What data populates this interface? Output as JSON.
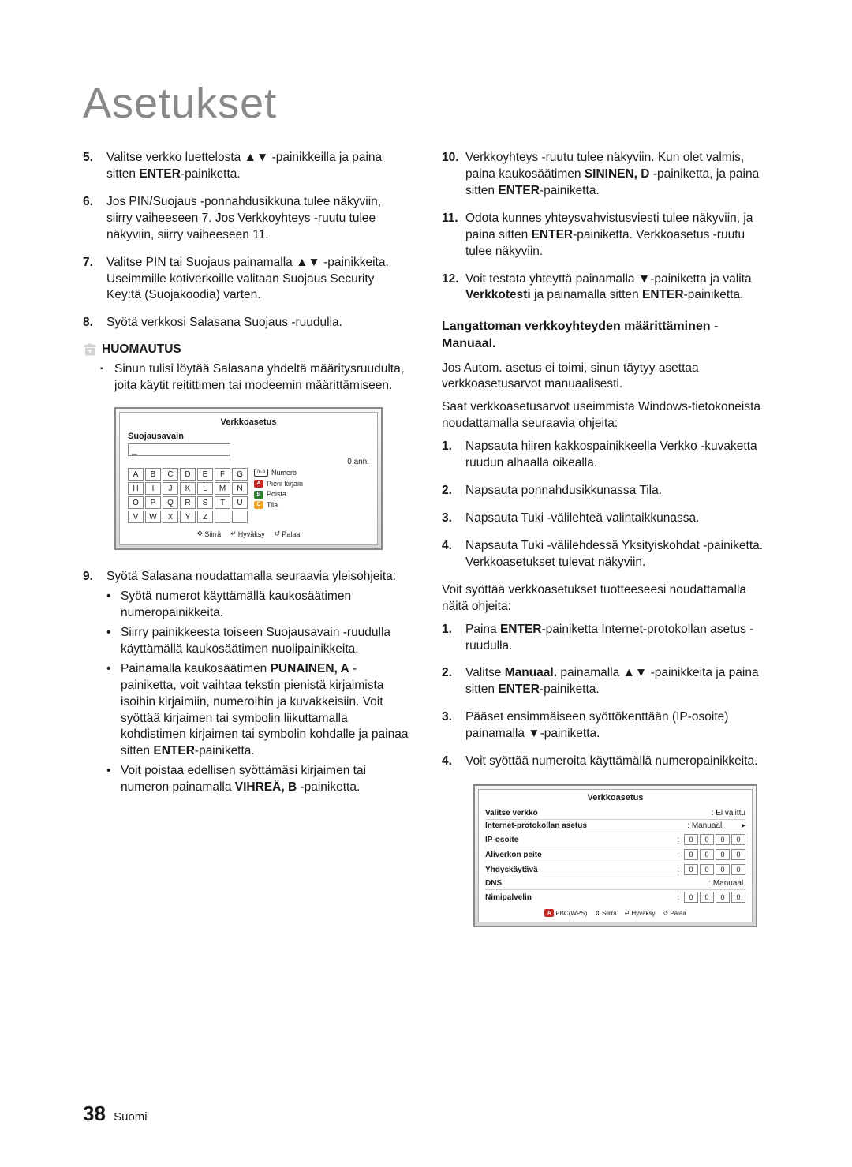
{
  "title": "Asetukset",
  "left": {
    "steps": [
      {
        "n": "5.",
        "html": "Valitse verkko luettelosta ▲▼ -painikkeilla ja paina sitten <b>ENTER</b>-painiketta."
      },
      {
        "n": "6.",
        "html": "Jos PIN/Suojaus -ponnahdusikkuna tulee näkyviin, siirry vaiheeseen 7. Jos Verkkoyhteys -ruutu tulee näkyviin, siirry vaiheeseen 11."
      },
      {
        "n": "7.",
        "html": "Valitse PIN tai Suojaus painamalla ▲▼ -painikkeita.<br>Useimmille kotiverkoille valitaan Suojaus Security Key:tä (Suojakoodia) varten."
      },
      {
        "n": "8.",
        "html": "Syötä verkkosi Salasana Suojaus -ruudulla."
      }
    ],
    "note_label": "HUOMAUTUS",
    "note_body": "Sinun tulisi löytää Salasana yhdeltä määritysruudulta, joita käytit reitittimen tai modeemin määrittämiseen.",
    "figure1": {
      "title": "Verkkoasetus",
      "field_label": "Suojausavain",
      "field_value": "_",
      "ann": "0 ann.",
      "keys": [
        "A",
        "B",
        "C",
        "D",
        "E",
        "F",
        "G",
        "H",
        "I",
        "J",
        "K",
        "L",
        "M",
        "N",
        "O",
        "P",
        "Q",
        "R",
        "S",
        "T",
        "U",
        "V",
        "W",
        "X",
        "Y",
        "Z",
        "",
        ""
      ],
      "legend": [
        {
          "chip": "num",
          "chip_text": "0~9",
          "label": "Numero"
        },
        {
          "chip": "red",
          "chip_text": "A",
          "label": "Pieni kirjain"
        },
        {
          "chip": "green",
          "chip_text": "B",
          "label": "Poista"
        },
        {
          "chip": "yellow",
          "chip_text": "C",
          "label": "Tila"
        }
      ],
      "footer": [
        {
          "sym": "✥",
          "label": "Siirrä"
        },
        {
          "sym": "↵",
          "label": "Hyväksy"
        },
        {
          "sym": "↺",
          "label": "Palaa"
        }
      ]
    },
    "step9": {
      "n": "9.",
      "intro": "Syötä Salasana noudattamalla seuraavia yleisohjeita:",
      "bullets": [
        "Syötä numerot käyttämällä kaukosäätimen numeropainikkeita.",
        "Siirry painikkeesta toiseen Suojausavain -ruudulla käyttämällä kaukosäätimen nuolipainikkeita.",
        "Painamalla kaukosäätimen <b>PUNAINEN, A</b> -painiketta, voit vaihtaa tekstin pienistä kirjaimista isoihin kirjaimiin, numeroihin ja kuvakkeisiin. Voit syöttää kirjaimen tai symbolin liikuttamalla kohdistimen kirjaimen tai symbolin kohdalle ja painaa sitten <b>ENTER</b>-painiketta.",
        "Voit poistaa edellisen syöttämäsi kirjaimen tai numeron painamalla <b>VIHREÄ, B</b> -painiketta."
      ]
    }
  },
  "right": {
    "steps": [
      {
        "n": "10.",
        "html": "Verkkoyhteys -ruutu tulee näkyviin. Kun olet valmis, paina kaukosäätimen <b>SININEN, D</b> -painiketta, ja paina sitten <b>ENTER</b>-painiketta."
      },
      {
        "n": "11.",
        "html": "Odota kunnes yhteysvahvistusviesti tulee näkyviin, ja paina sitten <b>ENTER</b>-painiketta. Verkkoasetus -ruutu tulee näkyviin."
      },
      {
        "n": "12.",
        "html": "Voit testata yhteyttä painamalla ▼-painiketta ja valita <b>Verkkotesti</b> ja painamalla sitten <b>ENTER</b>-painiketta."
      }
    ],
    "section_head": "Langattoman verkkoyhteyden määrittäminen - Manuaal.",
    "para1": "Jos Autom. asetus ei toimi, sinun täytyy asettaa verkkoasetusarvot manuaalisesti.",
    "para2": "Saat verkkoasetusarvot useimmista Windows-tietokoneista noudattamalla seuraavia ohjeita:",
    "list_a": [
      {
        "n": "1.",
        "text": "Napsauta hiiren kakkospainikkeella Verkko -kuvaketta ruudun alhaalla oikealla."
      },
      {
        "n": "2.",
        "text": "Napsauta ponnahdusikkunassa Tila."
      },
      {
        "n": "3.",
        "text": "Napsauta Tuki -välilehteä valintaikkunassa."
      },
      {
        "n": "4.",
        "text": "Napsauta Tuki -välilehdessä Yksityiskohdat -painiketta. Verkkoasetukset tulevat näkyviin."
      }
    ],
    "para3": "Voit syöttää verkkoasetukset tuotteeseesi noudattamalla näitä ohjeita:",
    "list_b": [
      {
        "n": "1.",
        "html": "Paina <b>ENTER</b>-painiketta Internet-protokollan asetus -ruudulla."
      },
      {
        "n": "2.",
        "html": "Valitse <b>Manuaal.</b> painamalla ▲▼ -painikkeita ja paina sitten <b>ENTER</b>-painiketta."
      },
      {
        "n": "3.",
        "html": "Pääset ensimmäiseen syöttökenttään (IP-osoite) painamalla ▼-painiketta."
      },
      {
        "n": "4.",
        "html": "Voit syöttää numeroita käyttämällä numeropainikkeita."
      }
    ],
    "figure2": {
      "title": "Verkkoasetus",
      "rows": [
        {
          "label": "Valitse verkko",
          "value": ": Ei valittu",
          "type": "text"
        },
        {
          "label": "Internet-protokollan asetus",
          "value": ": Manuaal.",
          "type": "select"
        },
        {
          "label": "IP-osoite",
          "type": "octets",
          "vals": [
            "0",
            "0",
            "0",
            "0"
          ]
        },
        {
          "label": "Aliverkon peite",
          "type": "octets",
          "vals": [
            "0",
            "0",
            "0",
            "0"
          ]
        },
        {
          "label": "Yhdyskäytävä",
          "type": "octets",
          "vals": [
            "0",
            "0",
            "0",
            "0"
          ]
        },
        {
          "label": "DNS",
          "value": ": Manuaal.",
          "type": "text"
        },
        {
          "label": "Nimipalvelin",
          "type": "octets",
          "vals": [
            "0",
            "0",
            "0",
            "0"
          ]
        }
      ],
      "footer": [
        {
          "chip": "red",
          "chip_text": "A",
          "label": "PBC(WPS)"
        },
        {
          "sym": "⇕",
          "label": "Siirrä"
        },
        {
          "sym": "↵",
          "label": "Hyväksy"
        },
        {
          "sym": "↺",
          "label": "Palaa"
        }
      ]
    }
  },
  "page": {
    "num": "38",
    "lang": "Suomi"
  }
}
